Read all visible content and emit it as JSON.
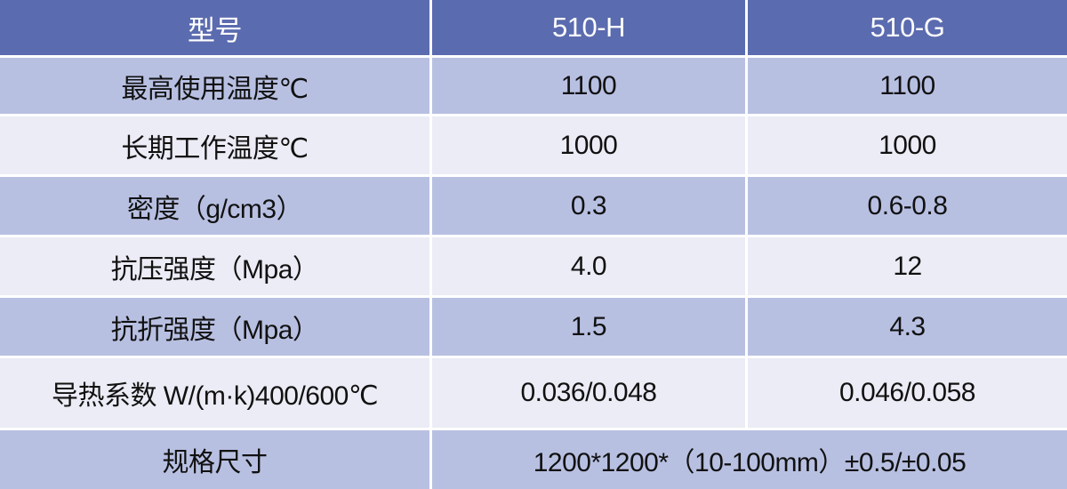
{
  "header": [
    "型号",
    "510-H",
    "510-G"
  ],
  "rows": [
    [
      "最高使用温度℃",
      "1100",
      "1100"
    ],
    [
      "长期工作温度℃",
      "1000",
      "1000"
    ],
    [
      "密度（g/cm3）",
      "0.3",
      "0.6-0.8"
    ],
    [
      "抗压强度（Mpa）",
      "4.0",
      "12"
    ],
    [
      "抗折强度（Mpa）",
      "1.5",
      "4.3"
    ],
    [
      "导热系数 W/(m·k)400/600℃",
      "0.036/0.048",
      "0.046/0.058"
    ]
  ],
  "spec_row": {
    "label": "规格尺寸",
    "value": "1200*1200*（10-100mm）±0.5/±0.05"
  },
  "colors": {
    "header": "#5b6baf",
    "row_dark": "#b8c0e2",
    "row_light": "#ebecf5"
  }
}
